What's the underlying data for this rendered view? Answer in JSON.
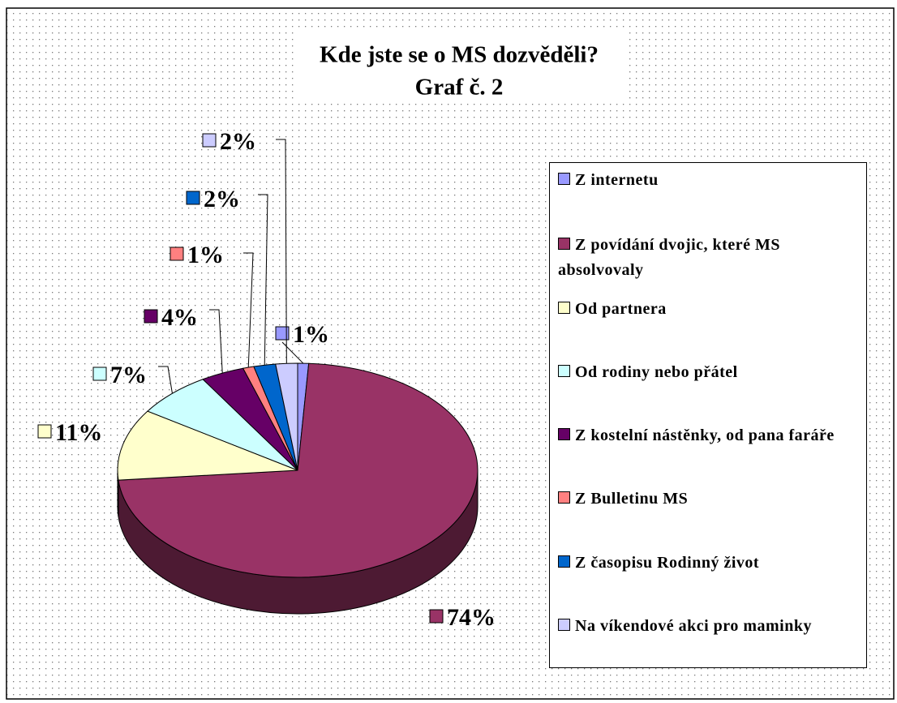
{
  "chart_data": {
    "type": "pie3d",
    "title": "Kde jste se o MS dozvěděli?",
    "subtitle": "Graf č. 2",
    "categories": [
      "Z internetu",
      "Z povídání dvojic, které MS absolvovaly",
      "Od partnera",
      "Od rodiny nebo přátel",
      "Z kostelní nástěnky, od pana faráře",
      "Z Bulletinu MS",
      "Z časopisu Rodinný život",
      "Na víkendové akci pro maminky"
    ],
    "values": [
      1,
      74,
      11,
      7,
      4,
      1,
      2,
      2
    ],
    "value_labels": [
      "1%",
      "74%",
      "11%",
      "7%",
      "4%",
      "1%",
      "2%",
      "2%"
    ],
    "colors": [
      "#9999ff",
      "#993366",
      "#ffffcc",
      "#ccffff",
      "#660066",
      "#ff8080",
      "#0066cc",
      "#ccccff"
    ],
    "legend": "right"
  }
}
